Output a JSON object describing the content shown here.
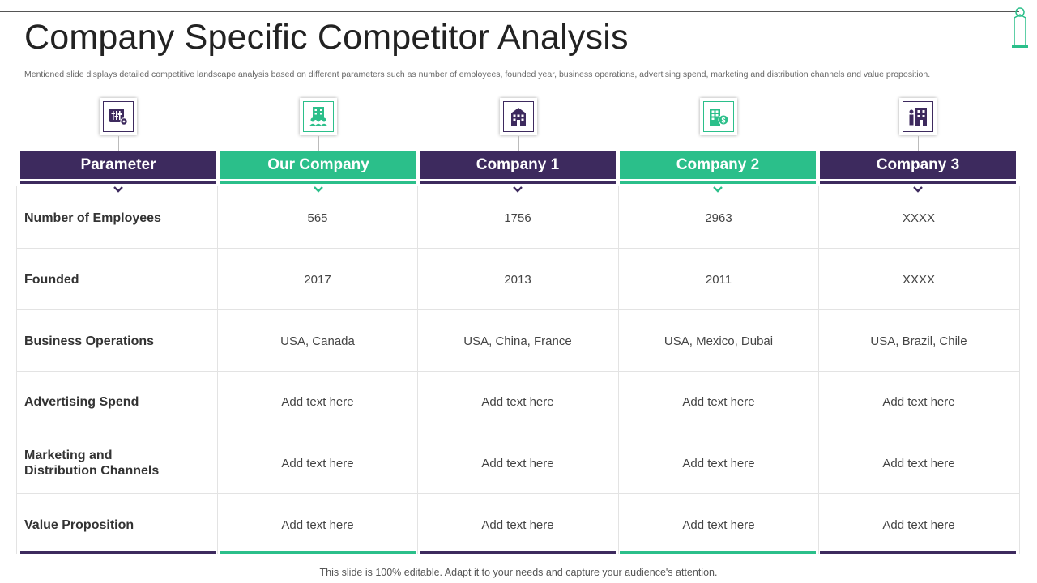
{
  "slide": {
    "title": "Company Specific Competitor Analysis",
    "subtitle": "Mentioned slide displays detailed competitive landscape analysis based on different parameters such as number of employees, founded year, business operations, advertising spend, marketing and distribution channels and value proposition.",
    "footer": "This slide is 100% editable. Adapt it to your needs and capture your audience's attention."
  },
  "colors": {
    "dark": "#3d2a5e",
    "green": "#2bbf8a"
  },
  "columns": [
    {
      "label": "Parameter",
      "icon": "settings-panel-icon",
      "theme": "dark"
    },
    {
      "label": "Our Company",
      "icon": "office-building-people-icon",
      "theme": "green"
    },
    {
      "label": "Company 1",
      "icon": "building-icon",
      "theme": "dark"
    },
    {
      "label": "Company 2",
      "icon": "building-money-icon",
      "theme": "green"
    },
    {
      "label": "Company 3",
      "icon": "person-building-icon",
      "theme": "dark"
    }
  ],
  "rows": [
    {
      "parameter": "Number of Employees",
      "values": [
        "565",
        "1756",
        "2963",
        "XXXX"
      ]
    },
    {
      "parameter": "Founded",
      "values": [
        "2017",
        "2013",
        "2011",
        "XXXX"
      ]
    },
    {
      "parameter": "Business Operations",
      "values": [
        "USA, Canada",
        "USA, China, France",
        "USA, Mexico, Dubai",
        "USA, Brazil, Chile"
      ]
    },
    {
      "parameter": "Advertising Spend",
      "values": [
        "Add text here",
        "Add text here",
        "Add text here",
        "Add text here"
      ]
    },
    {
      "parameter_line1": "Marketing and",
      "parameter_line2": "Distribution Channels",
      "values": [
        "Add text here",
        "Add text here",
        "Add text here",
        "Add text here"
      ]
    },
    {
      "parameter": "Value Proposition",
      "values": [
        "Add text here",
        "Add text here",
        "Add text here",
        "Add text here"
      ]
    }
  ]
}
